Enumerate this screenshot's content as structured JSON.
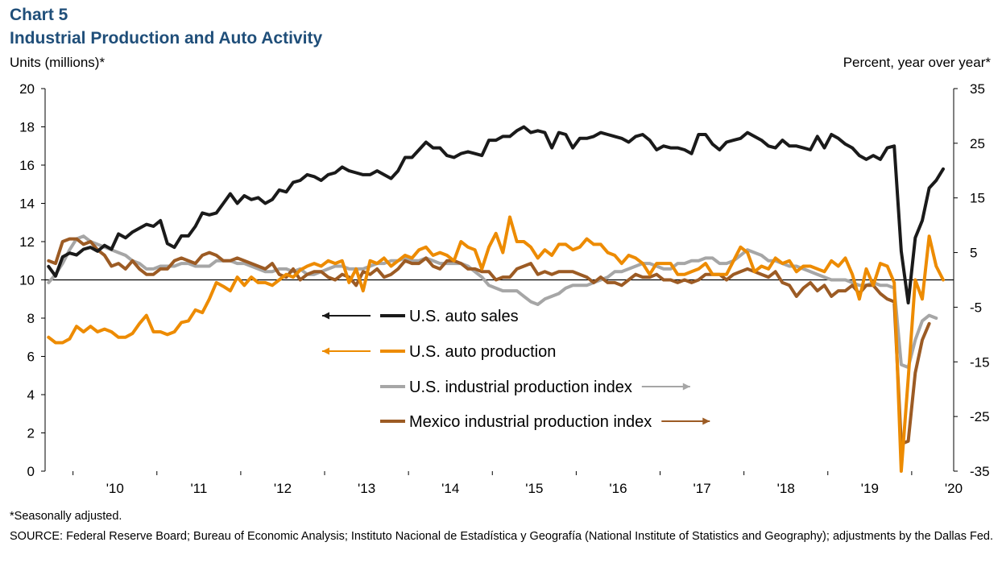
{
  "header": {
    "chart_number": "Chart 5",
    "title": "Industrial Production and Auto Activity"
  },
  "footnotes": {
    "note": "*Seasonally adjusted.",
    "source": "SOURCE: Federal Reserve Board; Bureau of Economic Analysis; Instituto Nacional de Estadística y Geografía (National Institute of Statistics and Geography); adjustments by the Dallas Fed."
  },
  "chart_data": {
    "type": "line",
    "title": "Industrial Production and Auto Activity",
    "left_axis": {
      "label": "Units (millions)*",
      "range": [
        0,
        20
      ],
      "ticks": [
        "0",
        "2",
        "4",
        "6",
        "8",
        "10",
        "12",
        "14",
        "16",
        "18",
        "20"
      ]
    },
    "right_axis": {
      "label": "Percent, year over year*",
      "range": [
        -35,
        35
      ],
      "ticks": [
        "-35",
        "-25",
        "-15",
        "-5",
        "5",
        "15",
        "25",
        "35"
      ]
    },
    "x_axis": {
      "start": "2009-09",
      "end": "2020-06",
      "tick_labels": [
        "'10",
        "'11",
        "'12",
        "'13",
        "'14",
        "'15",
        "'16",
        "'17",
        "'18",
        "'19",
        "'20"
      ]
    },
    "grid": false,
    "legend_position": "center",
    "colors": {
      "auto_sales": "#1a1a1a",
      "auto_production": "#ed8b00",
      "us_ip": "#a6a6a6",
      "mexico_ip": "#9c5b24"
    },
    "series": [
      {
        "name": "U.S. auto sales",
        "axis": "left",
        "arrow": "left",
        "color_key": "auto_sales",
        "start": "2009-09",
        "values": [
          10.7,
          10.2,
          11.2,
          11.4,
          11.3,
          11.6,
          11.7,
          11.5,
          11.8,
          11.6,
          12.4,
          12.2,
          12.5,
          12.7,
          12.9,
          12.8,
          13.1,
          11.9,
          11.7,
          12.3,
          12.3,
          12.8,
          13.5,
          13.4,
          13.5,
          14.0,
          14.5,
          14.0,
          14.4,
          14.2,
          14.3,
          14.0,
          14.2,
          14.7,
          14.6,
          15.1,
          15.2,
          15.5,
          15.4,
          15.2,
          15.5,
          15.6,
          15.9,
          15.7,
          15.6,
          15.5,
          15.5,
          15.7,
          15.5,
          15.3,
          15.7,
          16.4,
          16.4,
          16.8,
          17.2,
          16.9,
          16.9,
          16.5,
          16.4,
          16.6,
          16.7,
          16.6,
          16.5,
          17.3,
          17.3,
          17.5,
          17.5,
          17.8,
          18.0,
          17.7,
          17.8,
          17.7,
          16.9,
          17.7,
          17.6,
          16.9,
          17.4,
          17.4,
          17.5,
          17.7,
          17.6,
          17.5,
          17.4,
          17.2,
          17.5,
          17.6,
          17.3,
          16.8,
          17.0,
          16.9,
          16.9,
          16.8,
          16.6,
          17.6,
          17.6,
          17.1,
          16.8,
          17.2,
          17.3,
          17.4,
          17.7,
          17.5,
          17.3,
          17.0,
          16.9,
          17.3,
          17.0,
          17.0,
          16.9,
          16.8,
          17.5,
          16.9,
          17.6,
          17.4,
          17.1,
          16.9,
          16.5,
          16.3,
          16.5,
          16.3,
          16.9,
          17.0,
          11.5,
          8.8,
          12.2,
          13.1,
          14.8,
          15.2,
          15.8
        ]
      },
      {
        "name": "U.S. auto production",
        "axis": "right",
        "arrow": "left",
        "color_key": "auto_production",
        "start": "2009-09",
        "values": [
          -10.5,
          -11.5,
          -11.5,
          -10.8,
          -8.5,
          -9.5,
          -8.5,
          -9.5,
          -9.0,
          -9.5,
          -10.5,
          -10.5,
          -9.8,
          -8.0,
          -6.5,
          -9.5,
          -9.5,
          -10.0,
          -9.5,
          -7.8,
          -7.5,
          -5.5,
          -6.0,
          -3.5,
          -0.5,
          -1.2,
          -2.0,
          0.5,
          -1.0,
          0.5,
          -0.5,
          -0.5,
          -1.0,
          0.0,
          1.0,
          0.5,
          1.8,
          2.5,
          3.0,
          2.5,
          3.5,
          3.0,
          3.5,
          -0.5,
          2.0,
          -2.0,
          3.5,
          3.0,
          4.0,
          2.5,
          3.5,
          4.5,
          4.0,
          5.5,
          6.0,
          4.5,
          5.0,
          4.5,
          3.5,
          7.0,
          6.0,
          5.5,
          2.0,
          6.0,
          8.5,
          5.0,
          11.5,
          7.0,
          7.0,
          6.0,
          4.0,
          5.5,
          4.5,
          6.5,
          6.5,
          5.5,
          6.0,
          7.5,
          6.5,
          6.5,
          5.0,
          4.5,
          3.0,
          4.5,
          4.0,
          3.0,
          1.0,
          3.0,
          3.0,
          3.0,
          1.0,
          1.0,
          1.5,
          2.0,
          3.0,
          1.0,
          1.0,
          1.0,
          3.5,
          6.0,
          5.0,
          1.5,
          2.5,
          2.0,
          4.0,
          3.0,
          3.5,
          1.5,
          2.5,
          2.5,
          2.0,
          1.5,
          3.5,
          2.5,
          4.0,
          1.0,
          -3.5,
          2.0,
          -1.0,
          3.0,
          2.5,
          -0.5,
          -35.0,
          -18.0,
          0.0,
          -3.5,
          8.0,
          2.5,
          0.0
        ]
      },
      {
        "name": "U.S. industrial production index",
        "axis": "right",
        "arrow": "right",
        "color_key": "us_ip",
        "start": "2009-09",
        "values": [
          -0.5,
          1.0,
          3.0,
          5.5,
          7.5,
          8.0,
          7.0,
          6.5,
          6.0,
          5.5,
          5.0,
          4.5,
          3.5,
          3.0,
          2.0,
          2.0,
          2.5,
          2.5,
          2.5,
          3.0,
          3.0,
          2.5,
          2.5,
          2.5,
          3.5,
          3.5,
          3.5,
          3.0,
          3.0,
          2.5,
          2.0,
          1.5,
          1.5,
          2.0,
          2.0,
          1.5,
          2.0,
          1.0,
          1.0,
          1.5,
          2.0,
          2.5,
          2.5,
          2.0,
          2.0,
          2.0,
          2.5,
          3.0,
          3.0,
          3.5,
          3.5,
          4.0,
          3.5,
          3.5,
          4.0,
          3.5,
          3.0,
          3.0,
          3.0,
          3.0,
          2.5,
          1.5,
          0.5,
          -1.0,
          -1.5,
          -2.0,
          -2.0,
          -2.0,
          -3.0,
          -4.0,
          -4.5,
          -3.5,
          -3.0,
          -2.5,
          -1.5,
          -1.0,
          -1.0,
          -1.0,
          -0.5,
          0.0,
          0.5,
          1.5,
          1.5,
          2.0,
          2.5,
          3.0,
          3.0,
          2.5,
          2.0,
          2.0,
          3.0,
          3.0,
          3.5,
          3.5,
          4.0,
          4.0,
          3.0,
          3.0,
          3.5,
          4.5,
          5.5,
          5.0,
          4.5,
          3.5,
          3.5,
          3.0,
          2.5,
          2.5,
          2.0,
          1.5,
          1.0,
          0.5,
          0.0,
          0.0,
          0.0,
          -0.5,
          -1.0,
          -1.0,
          -0.5,
          -1.0,
          -1.0,
          -1.5,
          -15.5,
          -16.0,
          -11.0,
          -7.5,
          -6.5,
          -7.0
        ]
      },
      {
        "name": "Mexico industrial production index",
        "axis": "right",
        "arrow": "right",
        "color_key": "mexico_ip",
        "start": "2009-09",
        "values": [
          3.5,
          3.0,
          7.0,
          7.5,
          7.5,
          6.5,
          7.0,
          5.5,
          4.5,
          2.5,
          3.0,
          2.0,
          3.5,
          2.0,
          1.0,
          1.0,
          2.0,
          2.0,
          3.5,
          4.0,
          3.5,
          3.0,
          4.5,
          5.0,
          4.5,
          3.5,
          3.5,
          4.0,
          3.5,
          3.0,
          2.5,
          2.0,
          3.0,
          1.0,
          0.5,
          2.0,
          0.0,
          1.0,
          1.5,
          1.5,
          0.5,
          0.0,
          1.0,
          0.5,
          -1.0,
          1.5,
          1.0,
          2.0,
          0.5,
          1.0,
          2.0,
          3.5,
          3.0,
          3.0,
          4.0,
          2.5,
          2.0,
          3.5,
          3.5,
          3.0,
          2.0,
          2.0,
          1.5,
          1.5,
          0.0,
          0.5,
          0.5,
          2.0,
          2.5,
          3.0,
          1.0,
          1.5,
          1.0,
          1.5,
          1.5,
          1.5,
          1.0,
          0.5,
          -0.5,
          0.5,
          -0.5,
          -0.5,
          -1.0,
          0.0,
          1.0,
          0.5,
          0.5,
          1.0,
          0.0,
          0.0,
          -0.5,
          0.0,
          -0.5,
          0.0,
          1.0,
          1.0,
          1.0,
          0.0,
          1.0,
          1.5,
          2.0,
          1.5,
          1.0,
          0.5,
          1.5,
          -0.5,
          -1.0,
          -3.0,
          -1.5,
          -0.5,
          -2.0,
          -1.0,
          -3.0,
          -2.0,
          -2.0,
          -1.0,
          -2.5,
          -1.0,
          -1.0,
          -2.5,
          -3.5,
          -4.0,
          -30.0,
          -29.5,
          -17.0,
          -11.0,
          -8.0
        ]
      }
    ]
  }
}
